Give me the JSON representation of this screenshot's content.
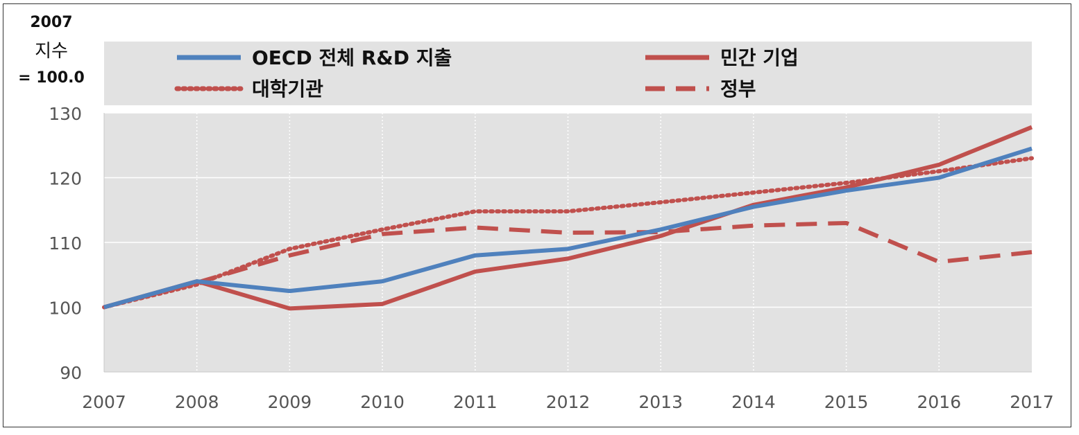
{
  "chart_data": {
    "type": "line",
    "ylabel_lines": [
      "2007",
      "지수",
      "= 100.0"
    ],
    "x": [
      "2007",
      "2008",
      "2009",
      "2010",
      "2011",
      "2012",
      "2013",
      "2014",
      "2015",
      "2016",
      "2017"
    ],
    "ylim": [
      90,
      130
    ],
    "yticks": [
      "90",
      "100",
      "110",
      "120",
      "130"
    ],
    "grid": true,
    "legend_position": "top",
    "series": [
      {
        "name": "OECD 전체 R&D 지출",
        "style": "solid",
        "color": "#4F81BD",
        "values": [
          100.0,
          104.0,
          102.5,
          104.0,
          108.0,
          109.0,
          112.0,
          115.5,
          118.0,
          120.0,
          124.5
        ]
      },
      {
        "name": "민간 기업",
        "style": "solid",
        "color": "#C0504D",
        "values": [
          100.0,
          104.0,
          99.8,
          100.5,
          105.5,
          107.5,
          111.0,
          115.8,
          118.5,
          122.0,
          127.8
        ]
      },
      {
        "name": "대학기관",
        "style": "dotted",
        "color": "#C0504D",
        "values": [
          100.0,
          103.5,
          109.0,
          112.0,
          114.8,
          114.8,
          116.2,
          117.7,
          119.2,
          121.0,
          123.0
        ]
      },
      {
        "name": "정부",
        "style": "dashed",
        "color": "#C0504D",
        "values": [
          100.0,
          103.8,
          108.0,
          111.3,
          112.3,
          111.5,
          111.6,
          112.6,
          113.0,
          107.0,
          108.5
        ]
      }
    ]
  }
}
